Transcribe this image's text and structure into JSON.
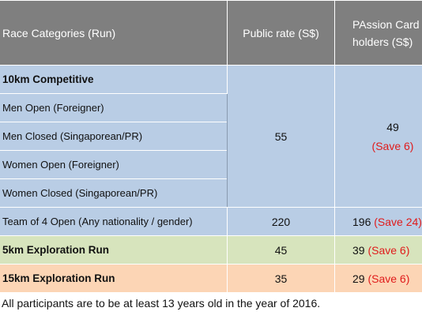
{
  "header": {
    "category": "Race Categories (Run)",
    "public_rate": "Public rate (S$)",
    "passion_line1": "PAssion Card",
    "passion_line2": "holders (S$)"
  },
  "competitive": {
    "title": "10km Competitive",
    "items": [
      "Men Open (Foreigner)",
      "Men Closed (Singaporean/PR)",
      "Women Open (Foreigner)",
      "Women Closed (Singaporean/PR)"
    ],
    "public_rate": "55",
    "passion_price": "49",
    "passion_save": "(Save 6)"
  },
  "team": {
    "label": "Team of 4 Open (Any nationality / gender)",
    "public_rate": "220",
    "passion_price": "196",
    "passion_save": "(Save 24)"
  },
  "exploration_5k": {
    "label": "5km Exploration Run",
    "public_rate": "45",
    "passion_price": "39",
    "passion_save": "(Save 6)"
  },
  "exploration_15k": {
    "label": "15km Exploration Run",
    "public_rate": "35",
    "passion_price": "29",
    "passion_save": "(Save 6)"
  },
  "footnote": "All participants are to be at least 13 years old in the year of 2016.",
  "colors": {
    "header_bg": "#7f7f7f",
    "blue_row": "#b9cde5",
    "green_row": "#d7e4bd",
    "peach_row": "#fcd5b5",
    "save_text": "#e01b1b"
  }
}
